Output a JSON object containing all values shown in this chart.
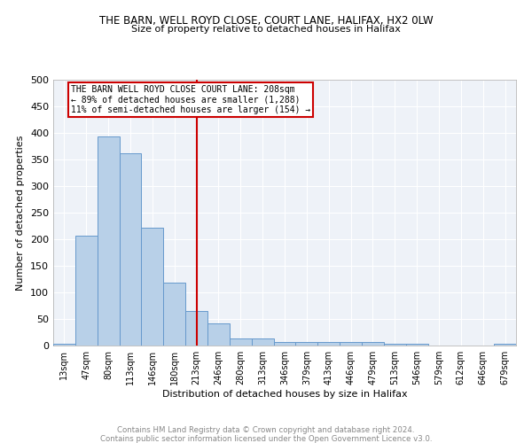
{
  "title1": "THE BARN, WELL ROYD CLOSE, COURT LANE, HALIFAX, HX2 0LW",
  "title2": "Size of property relative to detached houses in Halifax",
  "xlabel": "Distribution of detached houses by size in Halifax",
  "ylabel": "Number of detached properties",
  "bar_labels": [
    "13sqm",
    "47sqm",
    "80sqm",
    "113sqm",
    "146sqm",
    "180sqm",
    "213sqm",
    "246sqm",
    "280sqm",
    "313sqm",
    "346sqm",
    "379sqm",
    "413sqm",
    "446sqm",
    "479sqm",
    "513sqm",
    "546sqm",
    "579sqm",
    "612sqm",
    "646sqm",
    "679sqm"
  ],
  "bar_values": [
    3,
    207,
    393,
    362,
    222,
    118,
    65,
    41,
    14,
    14,
    7,
    7,
    7,
    7,
    7,
    3,
    3,
    0,
    0,
    0,
    3
  ],
  "bar_color": "#b8d0e8",
  "bar_edge_color": "#6699cc",
  "vline_color": "#cc0000",
  "annotation_text": "THE BARN WELL ROYD CLOSE COURT LANE: 208sqm\n← 89% of detached houses are smaller (1,288)\n11% of semi-detached houses are larger (154) →",
  "annotation_box_color": "#ffffff",
  "annotation_box_edge": "#cc0000",
  "ylim": [
    0,
    500
  ],
  "yticks": [
    0,
    50,
    100,
    150,
    200,
    250,
    300,
    350,
    400,
    450,
    500
  ],
  "footer1": "Contains HM Land Registry data © Crown copyright and database right 2024.",
  "footer2": "Contains public sector information licensed under the Open Government Licence v3.0.",
  "plot_background": "#eef2f8"
}
